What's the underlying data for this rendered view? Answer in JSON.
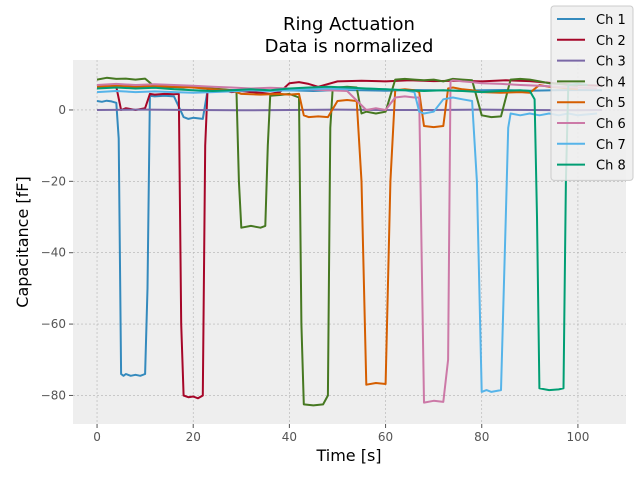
{
  "chart_data": {
    "type": "line",
    "title_line1": "Ring Actuation",
    "title_line2": "Data is normalized",
    "xlabel": "Time [s]",
    "ylabel": "Capacitance [fF]",
    "xlim": [
      -5,
      110
    ],
    "ylim": [
      -88,
      14
    ],
    "xticks": [
      0,
      20,
      40,
      60,
      80,
      100
    ],
    "yticks": [
      0,
      -20,
      -40,
      -60,
      -80
    ],
    "xtick_labels": [
      "0",
      "20",
      "40",
      "60",
      "80",
      "100"
    ],
    "ytick_labels": [
      "0",
      "−20",
      "−40",
      "−60",
      "−80"
    ],
    "grid": true,
    "legend_position": "top-right",
    "series": [
      {
        "name": "Ch 1",
        "color": "#348ABD",
        "x": [
          0,
          1,
          2,
          3,
          4,
          4.5,
          5,
          5.5,
          6,
          7,
          8,
          9,
          10,
          10.5,
          11,
          12,
          14,
          16,
          18,
          19,
          20,
          22,
          23,
          24,
          26,
          28,
          30,
          35,
          40,
          45,
          50,
          55,
          60,
          65,
          70,
          75,
          80,
          85,
          90,
          95,
          100,
          105
        ],
        "y": [
          2.5,
          2.3,
          2.6,
          2.4,
          2.0,
          -8.0,
          -74.0,
          -74.5,
          -74.0,
          -74.5,
          -74.2,
          -74.5,
          -74.0,
          -50.0,
          4.0,
          3.8,
          4.0,
          3.8,
          -2.0,
          -2.5,
          -2.2,
          -2.5,
          5.5,
          5.6,
          5.5,
          5.6,
          5.5,
          5.4,
          5.5,
          5.3,
          5.6,
          5.5,
          5.4,
          5.6,
          5.5,
          5.4,
          5.5,
          5.6,
          5.4,
          5.5,
          5.6,
          5.5
        ]
      },
      {
        "name": "Ch 2",
        "color": "#A60628",
        "x": [
          0,
          2,
          4,
          5,
          6,
          8,
          10,
          11,
          12,
          14,
          16,
          17,
          17.5,
          18,
          19,
          20,
          21,
          22,
          22.5,
          23,
          24,
          26,
          28,
          30,
          32,
          34,
          36,
          38,
          40,
          42,
          44,
          46,
          50,
          55,
          60,
          65,
          70,
          75,
          80,
          85,
          90,
          95,
          100,
          105
        ],
        "y": [
          6.5,
          6.6,
          6.5,
          0.0,
          0.5,
          0.0,
          0.5,
          4.5,
          4.3,
          4.5,
          4.4,
          4.5,
          -60.0,
          -80.0,
          -80.5,
          -80.3,
          -80.8,
          -80.0,
          -10.0,
          6.0,
          5.8,
          5.5,
          5.0,
          5.3,
          5.0,
          4.8,
          4.5,
          5.0,
          7.5,
          7.8,
          7.3,
          6.5,
          8.0,
          8.2,
          8.0,
          8.3,
          8.1,
          8.2,
          8.0,
          8.3,
          8.1,
          7.5,
          7.0,
          6.8
        ]
      },
      {
        "name": "Ch 3",
        "color": "#7A68A6",
        "x": [
          0,
          10,
          20,
          30,
          40,
          50,
          60,
          70,
          80,
          90,
          100,
          105
        ],
        "y": [
          0.0,
          0.1,
          0.0,
          -0.1,
          0.0,
          0.1,
          0.0,
          0.0,
          0.1,
          0.0,
          -0.1,
          0.0
        ]
      },
      {
        "name": "Ch 4",
        "color": "#467821",
        "x": [
          0,
          2,
          4,
          6,
          8,
          10,
          12,
          14,
          16,
          18,
          20,
          22,
          24,
          26,
          28,
          29,
          29.5,
          30,
          32,
          34,
          35,
          35.5,
          36,
          38,
          40,
          41,
          42,
          42.5,
          43,
          45,
          47,
          48,
          48.5,
          49,
          50,
          52,
          54,
          55,
          56,
          58,
          60,
          62,
          64,
          66,
          68,
          70,
          72,
          74,
          76,
          78,
          80,
          82,
          84,
          86,
          88,
          90,
          92,
          94,
          96,
          98,
          100
        ],
        "y": [
          8.5,
          9.0,
          8.7,
          8.8,
          8.5,
          8.8,
          6.5,
          6.3,
          6.4,
          6.3,
          6.5,
          6.3,
          6.0,
          5.8,
          5.5,
          5.0,
          -20.0,
          -33.0,
          -32.5,
          -33.0,
          -32.5,
          -10.0,
          4.0,
          4.2,
          4.5,
          4.0,
          3.5,
          -60.0,
          -82.5,
          -82.8,
          -82.5,
          -80.0,
          -5.0,
          6.0,
          6.3,
          6.5,
          6.3,
          -1.0,
          -0.5,
          -1.0,
          -0.5,
          8.5,
          8.7,
          8.5,
          8.3,
          8.5,
          8.0,
          8.7,
          8.5,
          8.3,
          -1.5,
          -2.0,
          -1.8,
          8.5,
          8.7,
          8.5,
          8.0,
          7.5,
          7.3,
          7.0,
          6.8
        ]
      },
      {
        "name": "Ch 5",
        "color": "#D55E00",
        "x": [
          0,
          4,
          8,
          12,
          16,
          20,
          24,
          28,
          30,
          34,
          38,
          40,
          42,
          43,
          44,
          46,
          48,
          50,
          52,
          54,
          55,
          56,
          58,
          60,
          61,
          62,
          64,
          66,
          67,
          68,
          70,
          72,
          73,
          74,
          76,
          78,
          80,
          84,
          88,
          90,
          92,
          94,
          96,
          98,
          100
        ],
        "y": [
          6.5,
          6.8,
          6.5,
          6.7,
          6.5,
          6.3,
          5.8,
          5.5,
          4.5,
          4.3,
          4.5,
          4.3,
          4.5,
          -1.5,
          -2.0,
          -1.8,
          -2.0,
          2.5,
          2.8,
          2.5,
          -20.0,
          -77.0,
          -76.5,
          -76.8,
          -20.0,
          5.5,
          5.8,
          5.5,
          5.0,
          -4.5,
          -4.8,
          -4.5,
          6.0,
          6.3,
          5.8,
          5.5,
          5.0,
          4.8,
          5.0,
          4.8,
          7.0,
          6.5,
          6.3,
          6.0,
          5.8
        ]
      },
      {
        "name": "Ch 6",
        "color": "#CC79A7",
        "x": [
          0,
          4,
          8,
          12,
          16,
          20,
          24,
          28,
          32,
          36,
          40,
          44,
          48,
          52,
          56,
          58,
          60,
          62,
          64,
          66,
          67,
          67.5,
          68,
          70,
          72,
          73,
          73.5,
          74,
          76,
          78,
          80,
          84,
          88,
          92,
          96,
          100,
          104
        ],
        "y": [
          7.0,
          7.3,
          7.0,
          7.2,
          7.0,
          6.8,
          6.5,
          6.3,
          6.0,
          6.2,
          6.0,
          5.8,
          5.5,
          5.3,
          0.0,
          0.5,
          0.0,
          3.5,
          3.8,
          3.5,
          3.5,
          -40.0,
          -82.0,
          -81.5,
          -81.8,
          -70.0,
          8.0,
          8.3,
          8.0,
          7.8,
          7.5,
          7.3,
          7.0,
          6.8,
          6.5,
          6.3,
          6.0
        ]
      },
      {
        "name": "Ch 7",
        "color": "#56B4E9",
        "x": [
          0,
          4,
          8,
          12,
          16,
          20,
          24,
          28,
          32,
          36,
          40,
          44,
          48,
          52,
          56,
          60,
          64,
          66,
          67,
          68,
          70,
          72,
          74,
          76,
          78,
          79,
          80,
          81,
          82,
          84,
          85,
          85.5,
          86,
          88,
          90,
          92,
          94,
          96,
          98,
          100,
          104
        ],
        "y": [
          5.0,
          5.3,
          5.0,
          5.2,
          5.0,
          4.8,
          5.0,
          5.2,
          5.5,
          5.3,
          5.5,
          5.8,
          6.0,
          5.8,
          6.0,
          5.8,
          5.5,
          5.0,
          -0.5,
          -1.0,
          -0.5,
          3.0,
          3.5,
          3.0,
          2.5,
          -20.0,
          -79.0,
          -78.5,
          -79.0,
          -78.5,
          -30.0,
          -5.0,
          -1.0,
          -1.5,
          -1.0,
          -1.5,
          -1.0,
          -1.5,
          -1.0,
          -1.5,
          -1.0
        ]
      },
      {
        "name": "Ch 8",
        "color": "#009E73",
        "x": [
          0,
          4,
          8,
          12,
          16,
          20,
          24,
          28,
          32,
          36,
          40,
          44,
          48,
          52,
          56,
          60,
          64,
          68,
          72,
          76,
          80,
          84,
          88,
          90,
          91,
          91.5,
          92,
          94,
          96,
          97,
          97.5,
          98,
          100,
          102
        ],
        "y": [
          6.0,
          6.3,
          6.0,
          6.2,
          5.8,
          5.5,
          5.3,
          5.5,
          5.8,
          5.5,
          6.0,
          6.3,
          6.5,
          6.3,
          6.0,
          5.8,
          5.5,
          5.3,
          5.5,
          5.3,
          5.0,
          5.3,
          5.5,
          5.3,
          3.0,
          -30.0,
          -78.0,
          -78.5,
          -78.3,
          -78.0,
          -20.0,
          7.0,
          7.3,
          7.0
        ]
      }
    ]
  }
}
